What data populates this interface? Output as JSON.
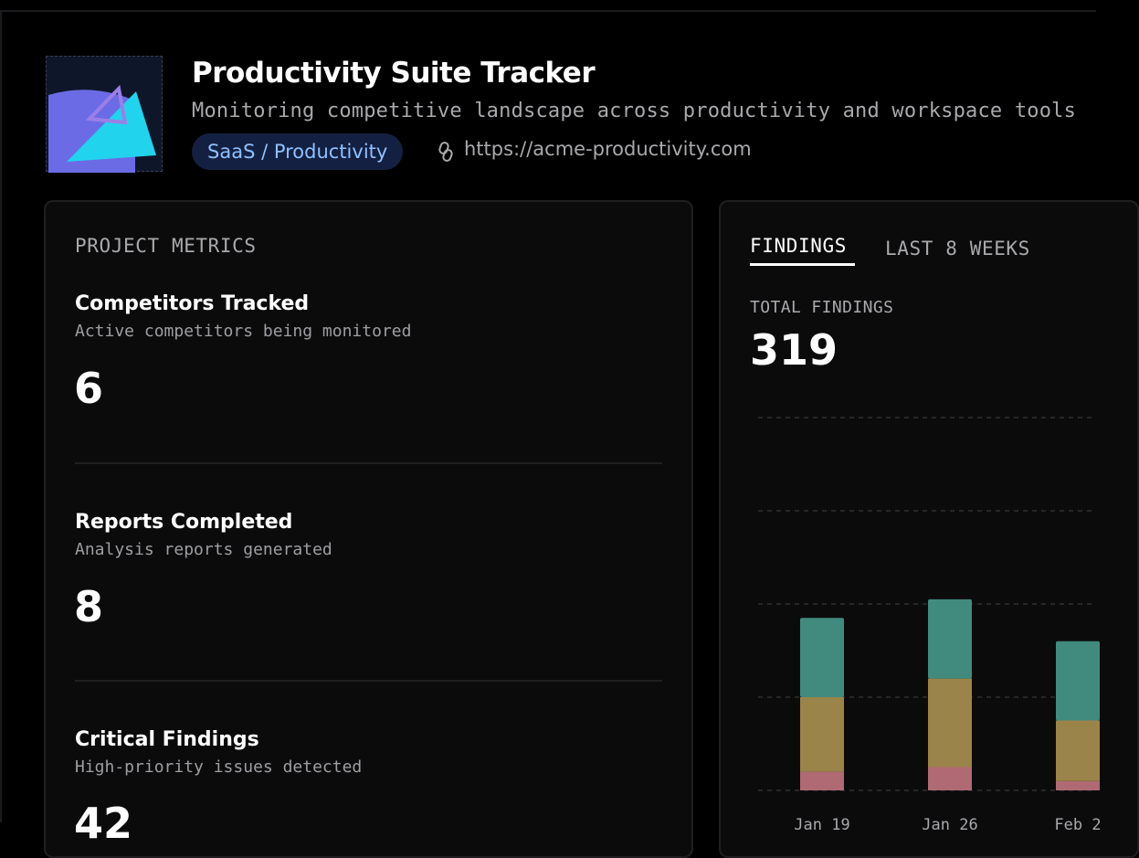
{
  "header": {
    "title": "Productivity Suite Tracker",
    "subtitle": "Monitoring competitive landscape across productivity and workspace tools",
    "tag": "SaaS / Productivity",
    "url": "https://acme-productivity.com",
    "logo_icon": "abstract-shapes-logo",
    "link_icon": "link-icon"
  },
  "metrics": {
    "section_label": "PROJECT METRICS",
    "items": [
      {
        "title": "Competitors Tracked",
        "description": "Active competitors being monitored",
        "value": "6"
      },
      {
        "title": "Reports Completed",
        "description": "Analysis reports generated",
        "value": "8"
      },
      {
        "title": "Critical Findings",
        "description": "High-priority issues detected",
        "value": "42"
      }
    ]
  },
  "findings": {
    "tabs": [
      {
        "label": "FINDINGS",
        "active": true
      },
      {
        "label": "LAST 8 WEEKS",
        "active": false
      }
    ],
    "total_label": "TOTAL FINDINGS",
    "total_value": "319"
  },
  "colors": {
    "teal": "#418b7e",
    "amber": "#9a8449",
    "rose": "#b06a73",
    "tag_bg": "#142042",
    "tag_text": "#8fc1ff"
  },
  "chart_data": {
    "type": "bar",
    "stacked": true,
    "grid": true,
    "ylim": [
      0,
      80
    ],
    "categories": [
      "Jan 19",
      "Jan 26",
      "Feb 2"
    ],
    "series": [
      {
        "color": "#b06a73",
        "values": [
          4,
          5,
          2
        ]
      },
      {
        "color": "#9a8449",
        "values": [
          16,
          19,
          13
        ]
      },
      {
        "color": "#418b7e",
        "values": [
          17,
          17,
          17
        ]
      }
    ]
  }
}
